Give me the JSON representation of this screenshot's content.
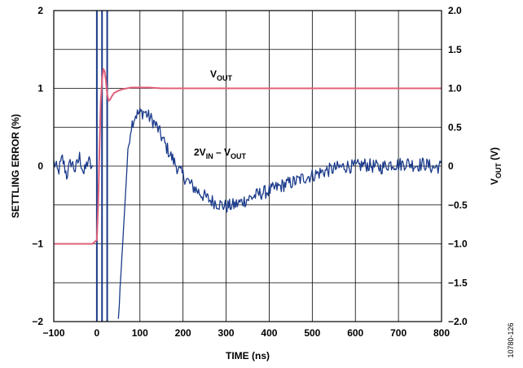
{
  "chart_data": {
    "type": "line",
    "xlabel": "TIME (ns)",
    "ylabel_left": "SETTLING ERROR (%)",
    "ylabel_right": {
      "main": "V",
      "sub": "OUT",
      "suffix": " (V)"
    },
    "xlim": [
      -100,
      800
    ],
    "ylim_left": [
      -2,
      2
    ],
    "ylim_right": [
      -2.0,
      2.0
    ],
    "x_ticks": [
      "−100",
      "0",
      "100",
      "200",
      "300",
      "400",
      "500",
      "600",
      "700",
      "800"
    ],
    "y_left_ticks": [
      "−2",
      "−1",
      "0",
      "1",
      "2"
    ],
    "y_right_ticks": [
      "−2.0",
      "−1.5",
      "−1.0",
      "−0.5",
      "0",
      "0.5",
      "1.0",
      "1.5",
      "2.0"
    ],
    "grid": true,
    "annotations": [
      {
        "id": "vout",
        "parts": [
          {
            "t": "V",
            "sub": false
          },
          {
            "t": "OUT",
            "sub": true
          }
        ]
      },
      {
        "id": "err",
        "parts": [
          {
            "t": "2V",
            "sub": false
          },
          {
            "t": "IN",
            "sub": true
          },
          {
            "t": " – V",
            "sub": false
          },
          {
            "t": "OUT",
            "sub": true
          }
        ]
      }
    ],
    "vertical_markers_ns": [
      0,
      12,
      24
    ],
    "series": [
      {
        "id": "vout",
        "axis": "right",
        "color": "#e0607a",
        "x": [
          -100,
          -90,
          -80,
          -70,
          -60,
          -50,
          -40,
          -30,
          -20,
          -10,
          0,
          3,
          6,
          9,
          12,
          15,
          18,
          21,
          24,
          27,
          30,
          35,
          40,
          50,
          60,
          70,
          80,
          90,
          100,
          120,
          150,
          200,
          250,
          300,
          350,
          400,
          450,
          500,
          550,
          600,
          650,
          700,
          750,
          800
        ],
        "y": [
          -1.0,
          -1.0,
          -1.0,
          -1.0,
          -1.0,
          -1.0,
          -1.0,
          -1.0,
          -1.0,
          -1.0,
          -0.95,
          -0.5,
          0.2,
          0.8,
          1.1,
          1.25,
          1.22,
          1.1,
          0.92,
          0.84,
          0.85,
          0.9,
          0.94,
          0.97,
          0.99,
          1.0,
          1.01,
          1.01,
          1.01,
          1.01,
          1.0,
          1.0,
          1.0,
          1.0,
          1.0,
          1.0,
          1.0,
          1.0,
          1.0,
          1.0,
          1.0,
          1.0,
          1.0,
          1.0
        ]
      },
      {
        "id": "settling_error",
        "axis": "left",
        "color": "#1a3a8a",
        "x": [
          -100,
          -90,
          -80,
          -70,
          -60,
          -50,
          -40,
          -30,
          -20,
          -10,
          50,
          55,
          60,
          65,
          70,
          75,
          80,
          85,
          90,
          100,
          110,
          120,
          130,
          140,
          150,
          160,
          170,
          180,
          190,
          200,
          220,
          240,
          260,
          280,
          300,
          320,
          340,
          360,
          380,
          400,
          420,
          440,
          460,
          480,
          500,
          520,
          540,
          560,
          580,
          600,
          620,
          640,
          660,
          680,
          700,
          720,
          740,
          760,
          780,
          800
        ],
        "y": [
          0.05,
          -0.08,
          0.1,
          -0.12,
          0.06,
          -0.05,
          0.12,
          -0.1,
          0.08,
          -0.05,
          -2.0,
          -1.45,
          -1.0,
          -0.5,
          0.0,
          0.35,
          0.52,
          0.6,
          0.66,
          0.68,
          0.7,
          0.64,
          0.58,
          0.5,
          0.38,
          0.26,
          0.15,
          0.05,
          -0.05,
          -0.12,
          -0.25,
          -0.35,
          -0.43,
          -0.48,
          -0.52,
          -0.5,
          -0.45,
          -0.4,
          -0.35,
          -0.32,
          -0.27,
          -0.23,
          -0.2,
          -0.15,
          -0.12,
          -0.08,
          -0.05,
          -0.02,
          0.0,
          -0.01,
          0.02,
          0.0,
          -0.02,
          0.03,
          0.02,
          0.04,
          0.01,
          0.03,
          -0.02,
          0.0
        ],
        "noise": 0.09
      }
    ],
    "figure_id": "10780-126"
  }
}
